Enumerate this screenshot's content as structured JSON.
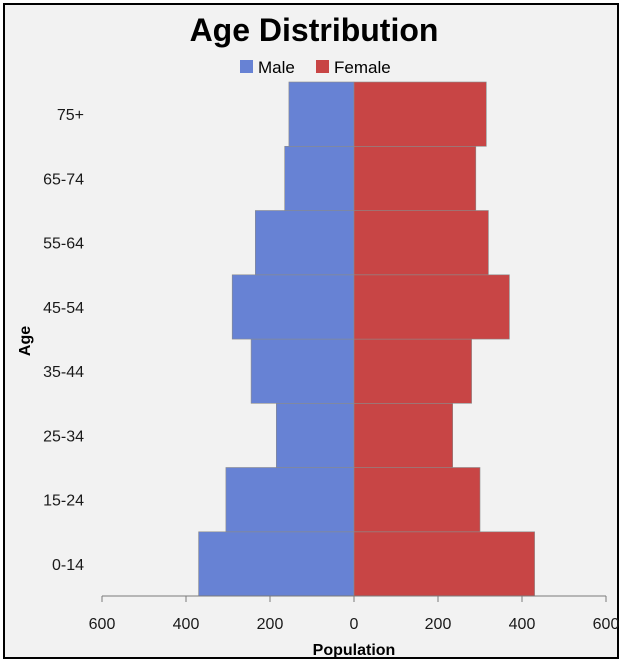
{
  "chart_data": {
    "type": "bar",
    "orientation": "horizontal",
    "layout": "population-pyramid",
    "title": "Age Distribution",
    "xlabel": "Population",
    "ylabel": "Age",
    "categories": [
      "0-14",
      "15-24",
      "25-34",
      "35-44",
      "45-54",
      "55-64",
      "65-74",
      "75+"
    ],
    "series": [
      {
        "name": "Male",
        "color": "#6782d4",
        "direction": "left",
        "values": [
          370,
          305,
          185,
          245,
          290,
          235,
          165,
          155
        ]
      },
      {
        "name": "Female",
        "color": "#c84545",
        "direction": "right",
        "values": [
          430,
          300,
          235,
          280,
          370,
          320,
          290,
          315
        ]
      }
    ],
    "xlim": [
      -600,
      600
    ],
    "xticks": [
      -600,
      -400,
      -200,
      0,
      200,
      400,
      600
    ],
    "xtick_labels": [
      "600",
      "400",
      "200",
      "0",
      "200",
      "400",
      "600"
    ],
    "legend_position": "top-center",
    "grid": false
  }
}
